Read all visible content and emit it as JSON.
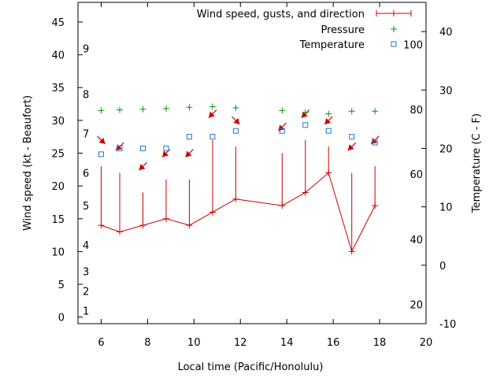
{
  "chart_data": {
    "type": "line",
    "xlabel": "Local time (Pacific/Honolulu)",
    "ylabel": "Wind speed (kt - Beaufort)",
    "y2label": "Temperature (C - F)",
    "xlim": [
      5,
      20
    ],
    "ylim": [
      -1,
      48
    ],
    "y2lim": [
      -10,
      45
    ],
    "x_ticks": [
      "6",
      "8",
      "10",
      "12",
      "14",
      "16",
      "18",
      "20"
    ],
    "y_ticks": [
      "0",
      "5",
      "10",
      "15",
      "20",
      "25",
      "30",
      "35",
      "40",
      "45"
    ],
    "y2_ticks": [
      "-10",
      "0",
      "10",
      "20",
      "30",
      "40"
    ],
    "beaufort_labels": [
      {
        "label": "1",
        "kt": 1
      },
      {
        "label": "2",
        "kt": 4
      },
      {
        "label": "3",
        "kt": 7
      },
      {
        "label": "4",
        "kt": 11
      },
      {
        "label": "5",
        "kt": 17
      },
      {
        "label": "6",
        "kt": 22
      },
      {
        "label": "7",
        "kt": 28
      },
      {
        "label": "8",
        "kt": 34
      },
      {
        "label": "9",
        "kt": 41
      }
    ],
    "fahrenheit_labels": [
      {
        "label": "20",
        "c": -6.7
      },
      {
        "label": "40",
        "c": 4.4
      },
      {
        "label": "60",
        "c": 15.6
      },
      {
        "label": "80",
        "c": 26.7
      },
      {
        "label": "100",
        "c": 37.8
      }
    ],
    "legend": [
      {
        "label": "Wind speed, gusts, and direction",
        "color": "#cc0000"
      },
      {
        "label": "Pressure",
        "color": "#009900"
      },
      {
        "label": "Temperature",
        "color": "#1e7ac8"
      }
    ],
    "wind": {
      "time": [
        6,
        6.8,
        7.8,
        8.8,
        9.8,
        10.8,
        11.8,
        13.8,
        14.8,
        15.8,
        16.8,
        17.8
      ],
      "speed": [
        14,
        13,
        14,
        15,
        14,
        16,
        18,
        17,
        19,
        22,
        10,
        17
      ],
      "gust": [
        23,
        22,
        19,
        21,
        21,
        27,
        26,
        25,
        27,
        26,
        22,
        23
      ]
    },
    "wind_direction_arrows": {
      "time": [
        6,
        6.8,
        7.8,
        8.8,
        9.8,
        10.8,
        11.8,
        13.8,
        14.8,
        15.8,
        16.8,
        17.8
      ],
      "y_kt": [
        27,
        26,
        23,
        25,
        25,
        31,
        30,
        29,
        31,
        30,
        26,
        27
      ],
      "direction": [
        "NW",
        "NE",
        "NE",
        "NE",
        "NE",
        "NE",
        "NW",
        "NE",
        "NE",
        "NE",
        "NE",
        "NE"
      ]
    },
    "pressure": {
      "time": [
        6,
        6.8,
        7.8,
        8.8,
        9.8,
        10.8,
        11.8,
        13.8,
        14.8,
        15.8,
        16.8,
        17.8
      ],
      "y_kt": [
        31.5,
        31.6,
        31.7,
        31.8,
        32,
        32.1,
        31.9,
        31.5,
        31.2,
        31,
        31.4,
        31.4
      ]
    },
    "temperature": {
      "time": [
        6,
        6.8,
        7.8,
        8.8,
        9.8,
        10.8,
        11.8,
        13.8,
        14.8,
        15.8,
        16.8,
        17.8
      ],
      "c": [
        19,
        20,
        20,
        20,
        22,
        22,
        23,
        23,
        24,
        23,
        22,
        21
      ]
    },
    "grid": false,
    "legend_position": "top-right"
  }
}
